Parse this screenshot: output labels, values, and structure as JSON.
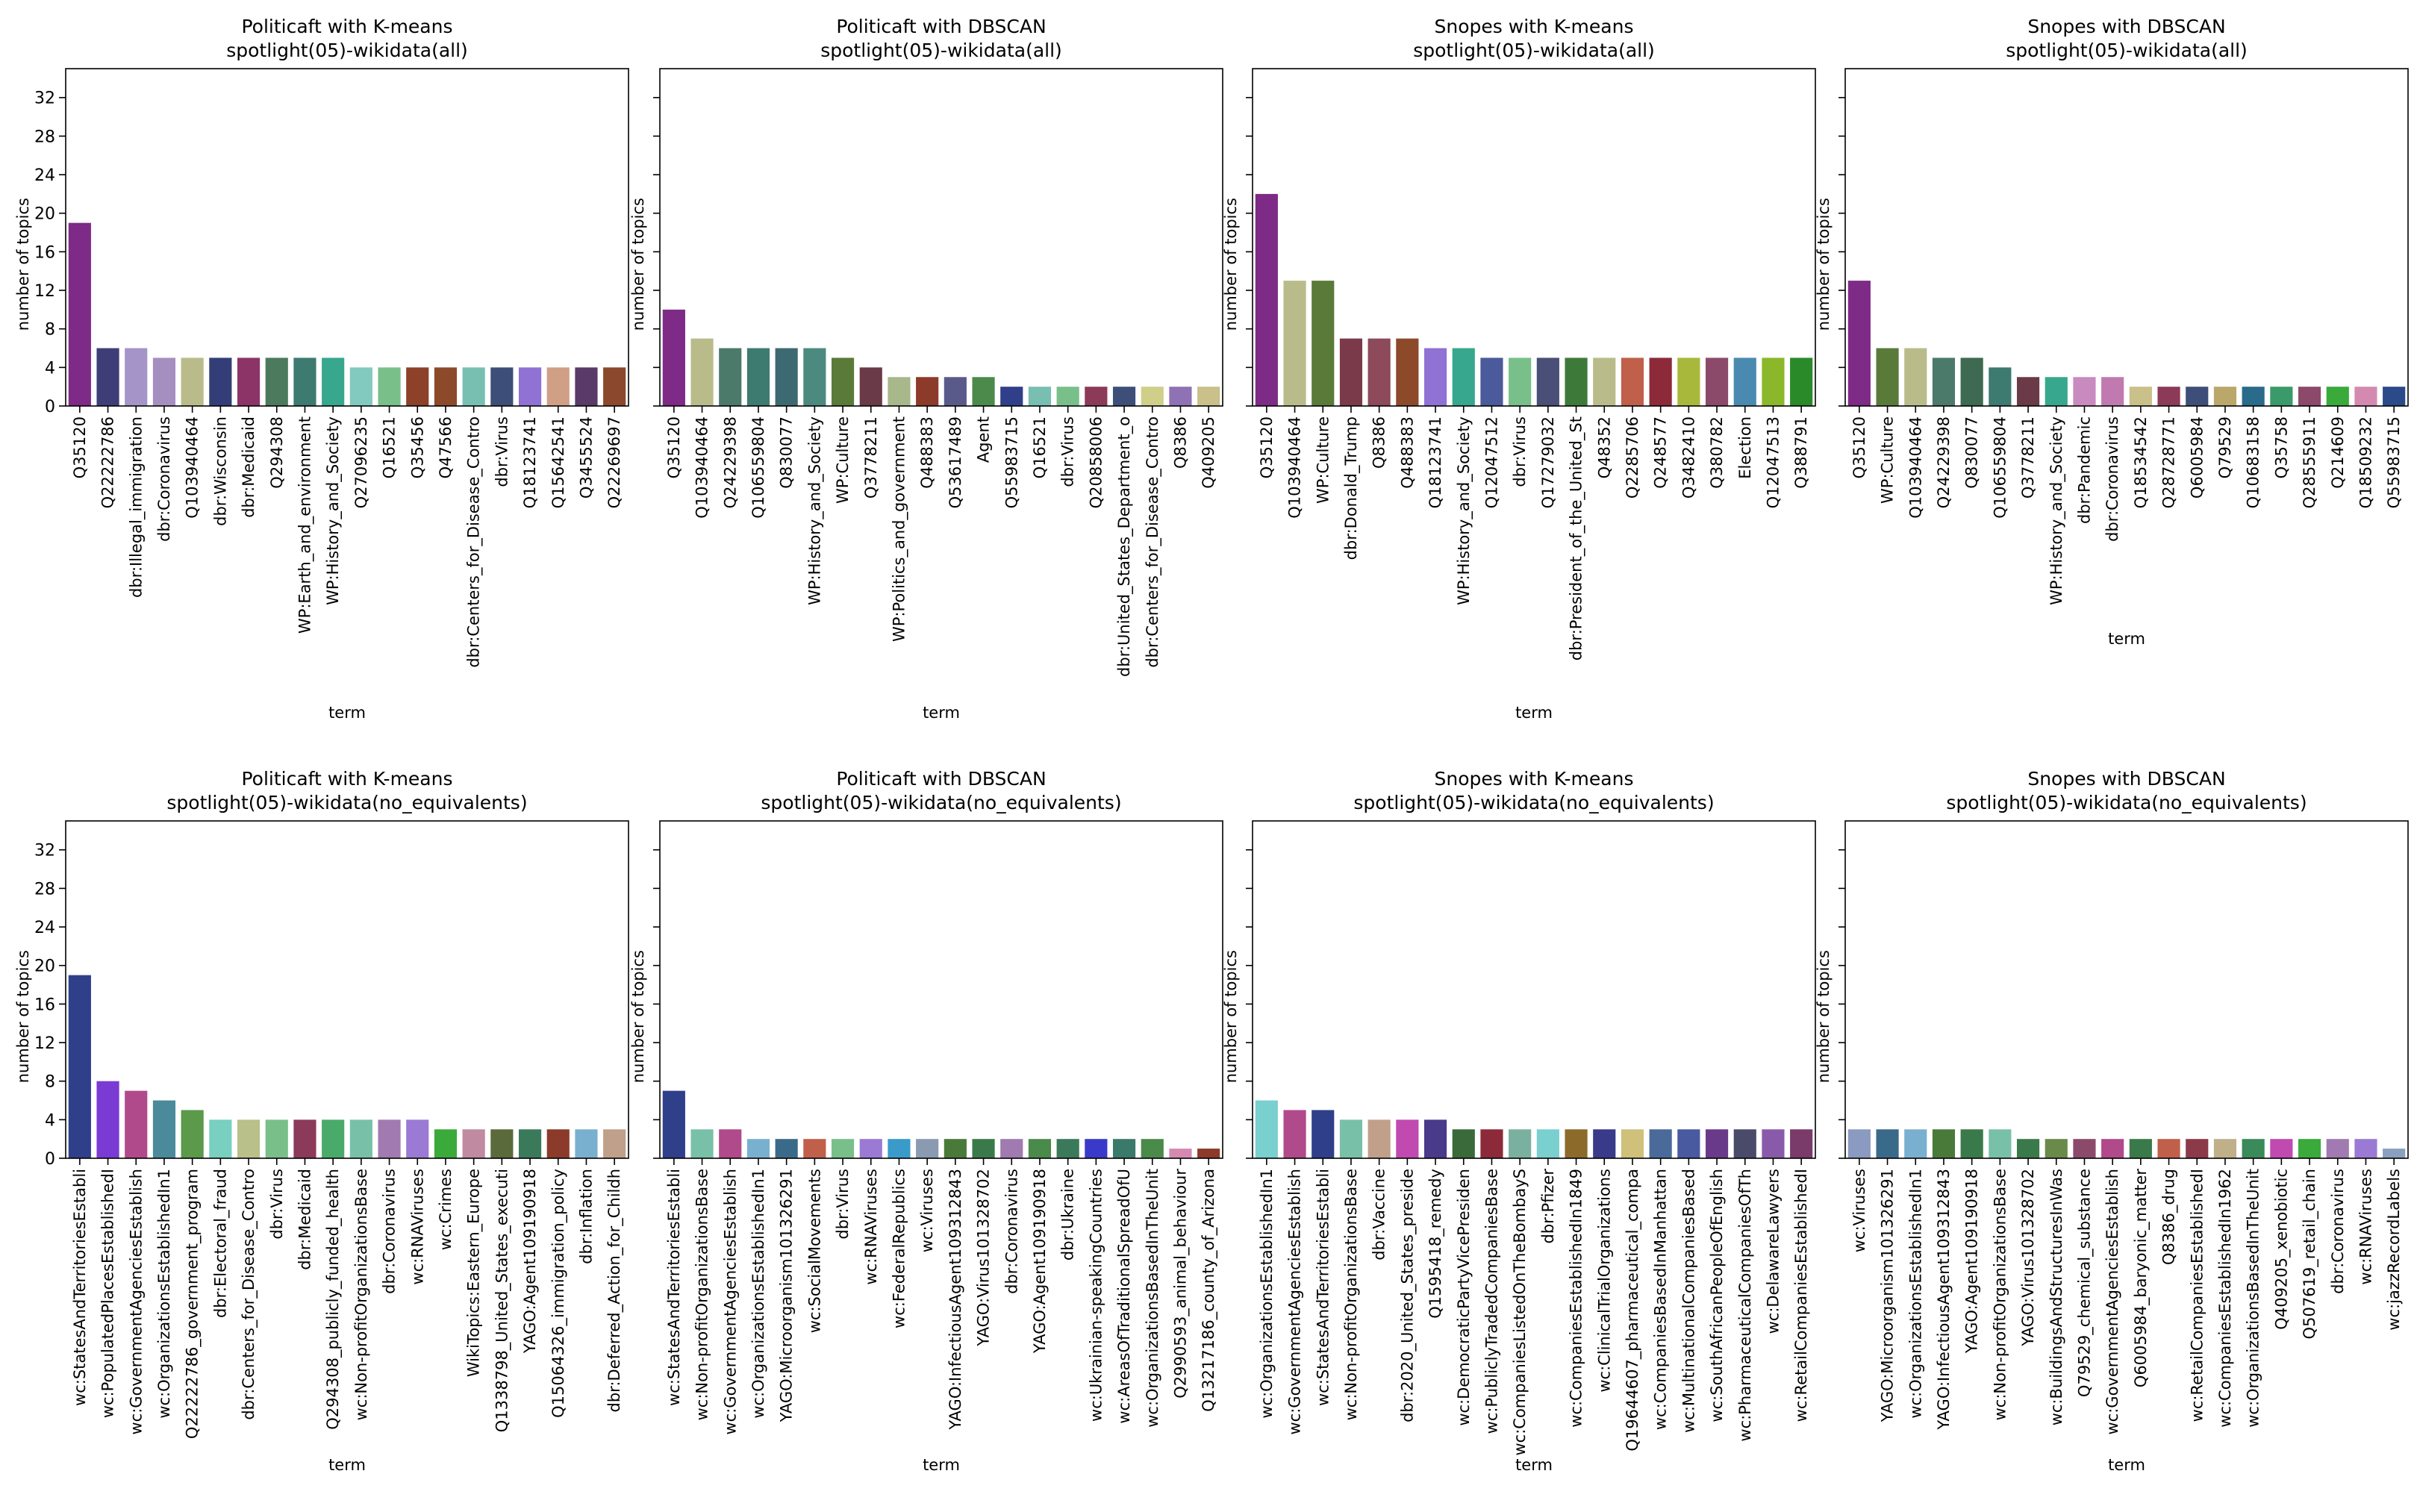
{
  "chart_data": [
    {
      "type": "bar",
      "title": "Politicaft with K-means",
      "subtitle": "spotlight(05)-wikidata(all)",
      "xlabel": "term",
      "ylabel": "number of topics",
      "ylim": [
        0,
        35
      ],
      "yticks": [
        0,
        4,
        8,
        12,
        16,
        20,
        24,
        28,
        32
      ],
      "show_ytick_labels": true,
      "categories": [
        "Q35120",
        "Q22222786",
        "dbr:Illegal_immigration",
        "dbr:Coronavirus",
        "Q103940464",
        "dbr:Wisconsin",
        "dbr:Medicaid",
        "Q294308",
        "WP:Earth_and_environment",
        "WP:History_and_Society",
        "Q27096235",
        "Q16521",
        "Q35456",
        "Q47566",
        "dbr:Centers_for_Disease_Contro",
        "dbr:Virus",
        "Q18123741",
        "Q15642541",
        "Q3455524",
        "Q22269697"
      ],
      "values": [
        19,
        6,
        6,
        5,
        5,
        5,
        5,
        5,
        5,
        5,
        4,
        4,
        4,
        4,
        4,
        4,
        4,
        4,
        4,
        4
      ],
      "colors": [
        "#7e2a87",
        "#3f3d78",
        "#a594c8",
        "#a58fc0",
        "#b9bc8a",
        "#333e78",
        "#8c3467",
        "#4c7a5c",
        "#3d7a70",
        "#37a78d",
        "#82c9c0",
        "#79bf8a",
        "#8c4128",
        "#8c4a2a",
        "#79bfb1",
        "#3d4f78",
        "#8f72d4",
        "#cf9f86",
        "#5a3a69",
        "#8c482c"
      ]
    },
    {
      "type": "bar",
      "title": "Politicaft with DBSCAN",
      "subtitle": "spotlight(05)-wikidata(all)",
      "xlabel": "term",
      "ylabel": "number of topics",
      "ylim": [
        0,
        35
      ],
      "yticks": [
        0,
        4,
        8,
        12,
        16,
        20,
        24,
        28,
        32
      ],
      "show_ytick_labels": false,
      "categories": [
        "Q35120",
        "Q103940464",
        "Q24229398",
        "Q106559804",
        "Q830077",
        "WP:History_and_Society",
        "WP:Culture",
        "Q3778211",
        "WP:Politics_and_government",
        "Q488383",
        "Q53617489",
        "Agent",
        "Q55983715",
        "Q16521",
        "dbr:Virus",
        "Q20858006",
        "dbr:United_States_Department_o",
        "dbr:Centers_for_Disease_Contro",
        "Q8386",
        "Q409205"
      ],
      "values": [
        10,
        7,
        6,
        6,
        6,
        6,
        5,
        4,
        3,
        3,
        3,
        3,
        2,
        2,
        2,
        2,
        2,
        2,
        2,
        2
      ],
      "colors": [
        "#7e2a87",
        "#b9bc8a",
        "#4c7a6a",
        "#3d7a70",
        "#3d6a70",
        "#4c8a80",
        "#5a7a3a",
        "#6a3a48",
        "#a8b88a",
        "#8c3a2a",
        "#5a5a8a",
        "#4c8a4c",
        "#2f3f8a",
        "#79bfb1",
        "#79bf8a",
        "#8c3a58",
        "#3d4f78",
        "#cfcf8a",
        "#8f72b4",
        "#c9c08a"
      ]
    },
    {
      "type": "bar",
      "title": "Snopes with K-means",
      "subtitle": "spotlight(05)-wikidata(all)",
      "xlabel": "term",
      "ylabel": "number of topics",
      "ylim": [
        0,
        35
      ],
      "yticks": [
        0,
        4,
        8,
        12,
        16,
        20,
        24,
        28,
        32
      ],
      "show_ytick_labels": false,
      "categories": [
        "Q35120",
        "Q103940464",
        "WP:Culture",
        "dbr:Donald_Trump",
        "Q8386",
        "Q488383",
        "Q18123741",
        "WP:History_and_Society",
        "Q12047512",
        "dbr:Virus",
        "Q17279032",
        "dbr:President_of_the_United_St",
        "Q48352",
        "Q2285706",
        "Q248577",
        "Q3482410",
        "Q380782",
        "Election",
        "Q12047513",
        "Q388791"
      ],
      "values": [
        22,
        13,
        13,
        7,
        7,
        7,
        6,
        6,
        5,
        5,
        5,
        5,
        5,
        5,
        5,
        5,
        5,
        5,
        5,
        5
      ],
      "colors": [
        "#7e2a87",
        "#b9bc8a",
        "#5a7a3a",
        "#7a3a4a",
        "#8c4a5a",
        "#8c4a2a",
        "#8f72d4",
        "#37a78d",
        "#4a5a9a",
        "#79bf8a",
        "#4a4f78",
        "#3d7a3a",
        "#b9bc8a",
        "#c0604a",
        "#8c2a3a",
        "#a8b83a",
        "#8c4a6a",
        "#4a8ab0",
        "#8ab82a",
        "#2a8a2a"
      ]
    },
    {
      "type": "bar",
      "title": "Snopes with DBSCAN",
      "subtitle": "spotlight(05)-wikidata(all)",
      "xlabel": "term",
      "ylabel": "number of topics",
      "ylim": [
        0,
        35
      ],
      "yticks": [
        0,
        4,
        8,
        12,
        16,
        20,
        24,
        28,
        32
      ],
      "show_ytick_labels": false,
      "categories": [
        "Q35120",
        "WP:Culture",
        "Q103940464",
        "Q24229398",
        "Q830077",
        "Q106559804",
        "Q3778211",
        "WP:History_and_Society",
        "dbr:Pandemic",
        "dbr:Coronavirus",
        "Q18534542",
        "Q28728771",
        "Q6005984",
        "Q79529",
        "Q10683158",
        "Q35758",
        "Q28555911",
        "Q214609",
        "Q18509232",
        "Q55983715"
      ],
      "values": [
        13,
        6,
        6,
        5,
        5,
        4,
        3,
        3,
        3,
        3,
        2,
        2,
        2,
        2,
        2,
        2,
        2,
        2,
        2,
        2
      ],
      "colors": [
        "#7e2a87",
        "#5a7a3a",
        "#b9bc8a",
        "#4c7a6a",
        "#3d6a50",
        "#3d7a70",
        "#6a3a48",
        "#37a78d",
        "#c98ac0",
        "#c07ab0",
        "#c9c08a",
        "#8c3a58",
        "#3d4f78",
        "#b9a86a",
        "#2a6a8a",
        "#3a9a6a",
        "#8c4a6a",
        "#3aaa3a",
        "#d48ab0",
        "#2a4a8a"
      ]
    },
    {
      "type": "bar",
      "title": "Politicaft with K-means",
      "subtitle": "spotlight(05)-wikidata(no_equivalents)",
      "xlabel": "term",
      "ylabel": "number of topics",
      "ylim": [
        0,
        35
      ],
      "yticks": [
        0,
        4,
        8,
        12,
        16,
        20,
        24,
        28,
        32
      ],
      "show_ytick_labels": true,
      "categories": [
        "wc:StatesAndTerritoriesEstabli",
        "wc:PopulatedPlacesEstablishedI",
        "wc:GovernmentAgenciesEstablish",
        "wc:OrganizationsEstablishedIn1",
        "Q22222786_government_program",
        "dbr:Electoral_fraud",
        "dbr:Centers_for_Disease_Contro",
        "dbr:Virus",
        "dbr:Medicaid",
        "Q294308_publicly_funded_health",
        "wc:Non-profitOrganizationsBase",
        "dbr:Coronavirus",
        "wc:RNAViruses",
        "wc:Crimes",
        "WikiTopics:Eastern_Europe",
        "Q1338798_United_States_executi",
        "YAGO:Agent109190918",
        "Q15064326_immigration_policy",
        "dbr:Inflation",
        "dbr:Deferred_Action_for_Childh"
      ],
      "values": [
        19,
        8,
        7,
        6,
        5,
        4,
        4,
        4,
        4,
        4,
        4,
        4,
        4,
        3,
        3,
        3,
        3,
        3,
        3,
        3
      ],
      "colors": [
        "#2f3f8a",
        "#7a3ad4",
        "#b04a8a",
        "#4a8a9a",
        "#5a9a4a",
        "#79cfc0",
        "#b9c08a",
        "#79bf8a",
        "#8c3a5a",
        "#4aaa6a",
        "#79c0a8",
        "#a07ab0",
        "#9a7ad4",
        "#3aaa3a",
        "#c08aa0",
        "#5a6a3a",
        "#3a7a5a",
        "#8c3a2a",
        "#7ab0cf",
        "#c0a08a"
      ]
    },
    {
      "type": "bar",
      "title": "Politicaft with DBSCAN",
      "subtitle": "spotlight(05)-wikidata(no_equivalents)",
      "xlabel": "term",
      "ylabel": "number of topics",
      "ylim": [
        0,
        35
      ],
      "yticks": [
        0,
        4,
        8,
        12,
        16,
        20,
        24,
        28,
        32
      ],
      "show_ytick_labels": false,
      "categories": [
        "wc:StatesAndTerritoriesEstabli",
        "wc:Non-profitOrganizationsBase",
        "wc:GovernmentAgenciesEstablish",
        "wc:OrganizationsEstablishedIn1",
        "YAGO:Microorganism101326291",
        "wc:SocialMovements",
        "dbr:Virus",
        "wc:RNAViruses",
        "wc:FederalRepublics",
        "wc:Viruses",
        "YAGO:InfectiousAgent109312843",
        "YAGO:Virus101328702",
        "dbr:Coronavirus",
        "YAGO:Agent109190918",
        "dbr:Ukraine",
        "wc:Ukrainian-speakingCountries",
        "wc:AreasOfTraditionalSpreadOfU",
        "wc:OrganizationsBasedInTheUnit",
        "Q2990593_animal_behaviour",
        "Q13217186_county_of_Arizona"
      ],
      "values": [
        7,
        3,
        3,
        2,
        2,
        2,
        2,
        2,
        2,
        2,
        2,
        2,
        2,
        2,
        2,
        2,
        2,
        2,
        1,
        1
      ],
      "colors": [
        "#2f3f8a",
        "#79c0a8",
        "#b04a8a",
        "#7ab0cf",
        "#3a6a8a",
        "#c0604a",
        "#79bf8a",
        "#9a7ad4",
        "#3a9aca",
        "#8a9ab0",
        "#4a7a3a",
        "#3a7a4a",
        "#a07ab0",
        "#4a8a4a",
        "#3a7a5a",
        "#3a3aca",
        "#3a7a6a",
        "#4a8a4a",
        "#d48ab0",
        "#8c3a2a"
      ]
    },
    {
      "type": "bar",
      "title": "Snopes with K-means",
      "subtitle": "spotlight(05)-wikidata(no_equivalents)",
      "xlabel": "term",
      "ylabel": "number of topics",
      "ylim": [
        0,
        35
      ],
      "yticks": [
        0,
        4,
        8,
        12,
        16,
        20,
        24,
        28,
        32
      ],
      "show_ytick_labels": false,
      "categories": [
        "wc:OrganizationsEstablishedIn1",
        "wc:GovernmentAgenciesEstablish",
        "wc:StatesAndTerritoriesEstabli",
        "wc:Non-profitOrganizationsBase",
        "dbr:Vaccine",
        "dbr:2020_United_States_preside",
        "Q1595418_remedy",
        "wc:DemocraticPartyVicePresiden",
        "wc:PubliclyTradedCompaniesBase",
        "wc:CompaniesListedOnTheBombayS",
        "dbr:Pfizer",
        "wc:CompaniesEstablishedIn1849",
        "wc:ClinicalTrialOrganizations",
        "Q19644607_pharmaceutical_compa",
        "wc:CompaniesBasedInManhattan",
        "wc:MultinationalCompaniesBased",
        "wc:SouthAfricanPeopleOfEnglish",
        "wc:PharmaceuticalCompaniesOfTh",
        "wc:DelawareLawyers",
        "wc:RetailCompaniesEstablishedI"
      ],
      "values": [
        6,
        5,
        5,
        4,
        4,
        4,
        4,
        3,
        3,
        3,
        3,
        3,
        3,
        3,
        3,
        3,
        3,
        3,
        3,
        3
      ],
      "colors": [
        "#7acfcf",
        "#b04a8a",
        "#2f3f8a",
        "#79c0a8",
        "#c0a08a",
        "#c04ab0",
        "#4a3a8a",
        "#3a6a3a",
        "#8c2a3a",
        "#7ab0a0",
        "#7acfcf",
        "#8c6a2a",
        "#3a3a8a",
        "#cfc07a",
        "#4a6a9a",
        "#4a5aa0",
        "#6a3a8a",
        "#4a4a6a",
        "#8a5aaa",
        "#7a3a6a"
      ]
    },
    {
      "type": "bar",
      "title": "Snopes with DBSCAN",
      "subtitle": "spotlight(05)-wikidata(no_equivalents)",
      "xlabel": "term",
      "ylabel": "number of topics",
      "ylim": [
        0,
        35
      ],
      "yticks": [
        0,
        4,
        8,
        12,
        16,
        20,
        24,
        28,
        32
      ],
      "show_ytick_labels": false,
      "categories": [
        "wc:Viruses",
        "YAGO:Microorganism101326291",
        "wc:OrganizationsEstablishedIn1",
        "YAGO:InfectiousAgent109312843",
        "YAGO:Agent109190918",
        "wc:Non-profitOrganizationsBase",
        "YAGO:Virus101328702",
        "wc:BuildingsAndStructuresInWas",
        "Q79529_chemical_substance",
        "wc:GovernmentAgenciesEstablish",
        "Q6005984_baryonic_matter",
        "Q8386_drug",
        "wc:RetailCompaniesEstablishedI",
        "wc:CompaniesEstablishedIn1962",
        "wc:OrganizationsBasedInTheUnit",
        "Q409205_xenobiotic",
        "Q507619_retail_chain",
        "dbr:Coronavirus",
        "wc:RNAViruses",
        "wc:jazzRecordLabels"
      ],
      "values": [
        3,
        3,
        3,
        3,
        3,
        3,
        2,
        2,
        2,
        2,
        2,
        2,
        2,
        2,
        2,
        2,
        2,
        2,
        2,
        1
      ],
      "colors": [
        "#8a9ac0",
        "#3a6a8a",
        "#7ab0cf",
        "#4a7a3a",
        "#3a7a4a",
        "#79c0a8",
        "#3a7a4a",
        "#6a8a4a",
        "#8c4a6a",
        "#b04a8a",
        "#3a7a4a",
        "#c0604a",
        "#8c3a4a",
        "#c0b08a",
        "#3a8a5a",
        "#c04ab0",
        "#3aaa3a",
        "#a07ab0",
        "#9a7ad4",
        "#8aa0c0"
      ]
    }
  ]
}
